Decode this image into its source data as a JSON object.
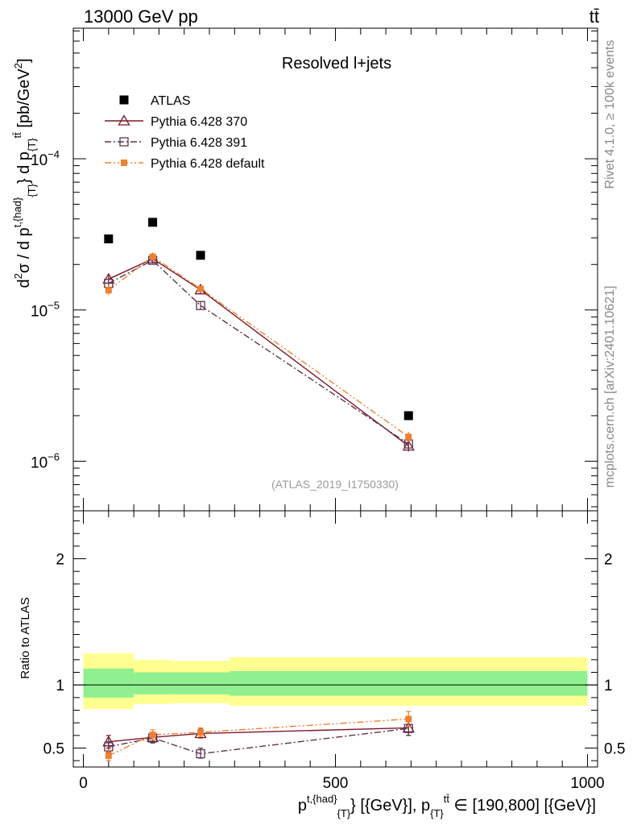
{
  "header": {
    "energy_label": "13000 GeV pp",
    "process_label": "tt̄"
  },
  "side_labels": {
    "rivet": "Rivet 4.1.0, ≥ 100k events",
    "source": "mcplots.cern.ch [arXiv:2401.10621]"
  },
  "chart_data": [
    {
      "type": "scatter",
      "panel": "main",
      "title": "Resolved l+jets",
      "watermark": "(ATLAS_2019_I1750330)",
      "ylabel_parts": {
        "a": "d",
        "b": "2",
        "c": "σ / d p",
        "d": "t,{had}",
        "e": "{T}",
        "f": "} d p",
        "g": "{T}",
        "h": "tt̄",
        "i": " [pb/GeV",
        "j": "2",
        "k": "]"
      },
      "yscale": "log",
      "ylim": [
        4.7e-07,
        0.00073
      ],
      "xlim": [
        -20,
        1020
      ],
      "y_tick_labels": [
        {
          "value": 1e-06,
          "base": "10",
          "exp": "−6"
        },
        {
          "value": 1e-05,
          "base": "10",
          "exp": "−5"
        },
        {
          "value": 0.0001,
          "base": "10",
          "exp": "−4"
        }
      ],
      "legend": {
        "position": "top-left",
        "entries": [
          "ATLAS",
          "Pythia 6.428 370",
          "Pythia 6.428 391",
          "Pythia 6.428 default"
        ]
      },
      "series": [
        {
          "name": "ATLAS",
          "color": "#000000",
          "marker": "square-filled",
          "line": "none",
          "points": [
            {
              "x": 50,
              "y": 2.95e-05
            },
            {
              "x": 137.5,
              "y": 3.8e-05
            },
            {
              "x": 232.5,
              "y": 2.3e-05
            },
            {
              "x": 645,
              "y": 2e-06
            }
          ]
        },
        {
          "name": "Pythia 6.428 370",
          "color": "#7a1a2a",
          "marker": "triangle-open",
          "line": "solid",
          "points": [
            {
              "x": 50,
              "y": 1.6e-05,
              "err": 0.06
            },
            {
              "x": 137.5,
              "y": 2.18e-05,
              "err": 0.05
            },
            {
              "x": 232.5,
              "y": 1.36e-05,
              "err": 0.05
            },
            {
              "x": 645,
              "y": 1.26e-06,
              "err": 0.08
            }
          ]
        },
        {
          "name": "Pythia 6.428 391",
          "color": "#5b3550",
          "marker": "square-open",
          "line": "dashdot",
          "points": [
            {
              "x": 50,
              "y": 1.5e-05,
              "err": 0.06
            },
            {
              "x": 137.5,
              "y": 2.13e-05,
              "err": 0.05
            },
            {
              "x": 232.5,
              "y": 1.07e-05,
              "err": 0.06
            },
            {
              "x": 645,
              "y": 1.3e-06,
              "err": 0.08
            }
          ]
        },
        {
          "name": "Pythia 6.428 default",
          "color": "#f08030",
          "marker": "square-filled-small",
          "line": "dashdotdot",
          "points": [
            {
              "x": 50,
              "y": 1.35e-05,
              "err": 0.07
            },
            {
              "x": 137.5,
              "y": 2.25e-05,
              "err": 0.05
            },
            {
              "x": 232.5,
              "y": 1.38e-05,
              "err": 0.05
            },
            {
              "x": 645,
              "y": 1.45e-06,
              "err": 0.08
            }
          ]
        }
      ]
    },
    {
      "type": "scatter",
      "panel": "ratio",
      "ylabel": "Ratio to ATLAS",
      "ylim": [
        0.35,
        2.38
      ],
      "xlim": [
        -20,
        1020
      ],
      "y_ticks": [
        0.5,
        1,
        2
      ],
      "y_tick_labels": [
        "0.5",
        "1",
        "2"
      ],
      "x_ticks": [
        0,
        500,
        1000
      ],
      "x_tick_labels": [
        "0",
        "500",
        "1000"
      ],
      "xlabel_parts": {
        "a": "p",
        "b": "t,{had}",
        "c": "{T}",
        "d": "} [{GeV}], p",
        "e": "{T}",
        "f": "tt̄",
        "g": " ∈ [190,800] [{GeV}]"
      },
      "bands": {
        "green_color": "#90f090",
        "yellow_color": "#ffff90",
        "bins": [
          {
            "x0": 0,
            "x1": 100,
            "inner": [
              0.9,
              1.13
            ],
            "outer": [
              0.81,
              1.25
            ]
          },
          {
            "x0": 100,
            "x1": 175,
            "inner": [
              0.925,
              1.1
            ],
            "outer": [
              0.85,
              1.2
            ]
          },
          {
            "x0": 175,
            "x1": 290,
            "inner": [
              0.925,
              1.1
            ],
            "outer": [
              0.855,
              1.19
            ]
          },
          {
            "x0": 290,
            "x1": 1000,
            "inner": [
              0.915,
              1.11
            ],
            "outer": [
              0.835,
              1.22
            ]
          }
        ]
      },
      "series": [
        {
          "name": "Pythia 6.428 370",
          "color": "#7a1a2a",
          "marker": "triangle-open",
          "line": "solid",
          "points": [
            {
              "x": 50,
              "y": 0.55,
              "lo": 0.5,
              "hi": 0.6
            },
            {
              "x": 137.5,
              "y": 0.585,
              "lo": 0.545,
              "hi": 0.625
            },
            {
              "x": 232.5,
              "y": 0.615,
              "lo": 0.58,
              "hi": 0.65
            },
            {
              "x": 645,
              "y": 0.66,
              "lo": 0.6,
              "hi": 0.72
            }
          ]
        },
        {
          "name": "Pythia 6.428 391",
          "color": "#5b3550",
          "marker": "square-open",
          "line": "dashdot",
          "points": [
            {
              "x": 50,
              "y": 0.51,
              "lo": 0.47,
              "hi": 0.55
            },
            {
              "x": 137.5,
              "y": 0.58,
              "lo": 0.54,
              "hi": 0.62
            },
            {
              "x": 232.5,
              "y": 0.455,
              "lo": 0.42,
              "hi": 0.5
            },
            {
              "x": 645,
              "y": 0.655,
              "lo": 0.6,
              "hi": 0.71
            }
          ]
        },
        {
          "name": "Pythia 6.428 default",
          "color": "#f08030",
          "marker": "square-filled-small",
          "line": "dashdotdot",
          "points": [
            {
              "x": 50,
              "y": 0.44,
              "lo": 0.4,
              "hi": 0.48
            },
            {
              "x": 137.5,
              "y": 0.605,
              "lo": 0.565,
              "hi": 0.645
            },
            {
              "x": 232.5,
              "y": 0.625,
              "lo": 0.59,
              "hi": 0.66
            },
            {
              "x": 645,
              "y": 0.73,
              "lo": 0.67,
              "hi": 0.79
            }
          ]
        }
      ]
    }
  ]
}
